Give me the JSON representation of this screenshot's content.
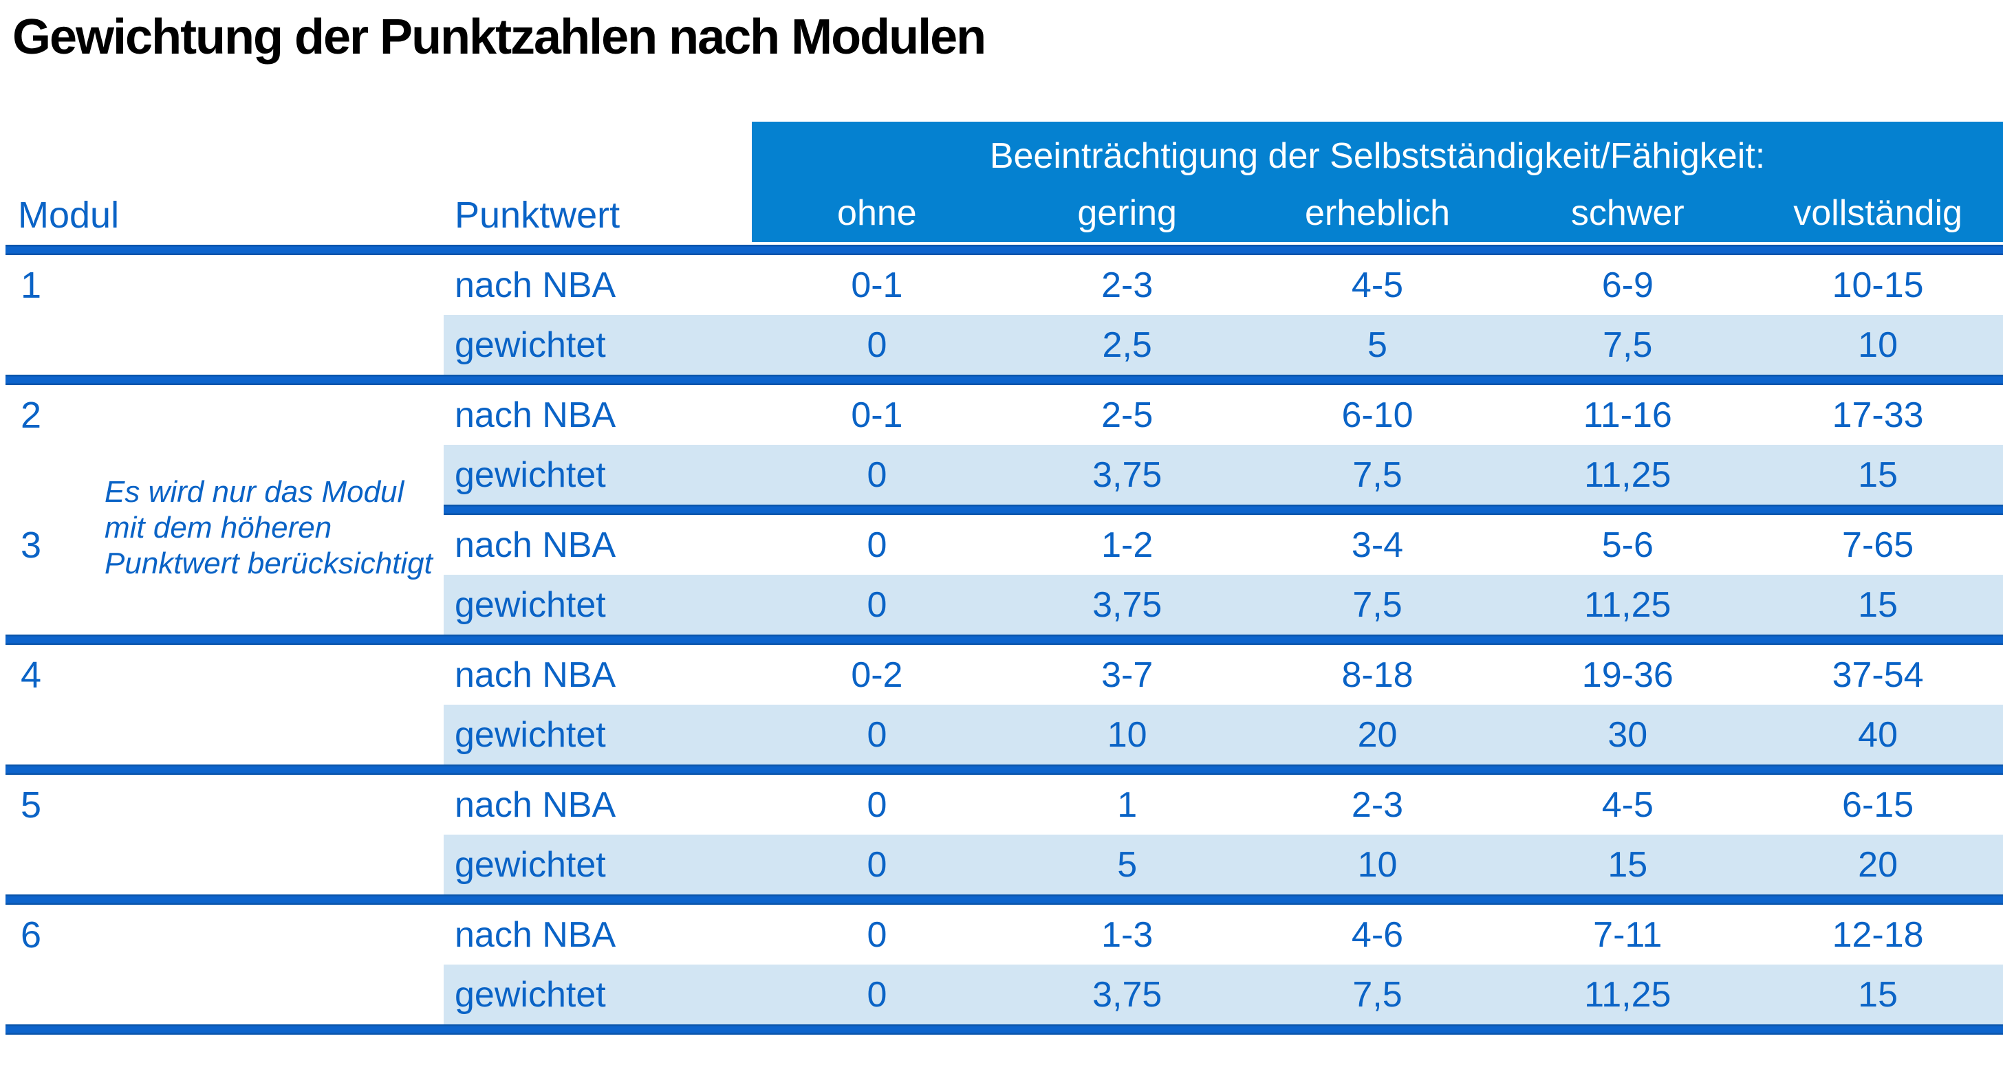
{
  "title": "Gewichtung der Punktzahlen nach Modulen",
  "colors": {
    "header_blue": "#0581d0",
    "divider_blue": "#0d64cc",
    "text_blue": "#0a63c6",
    "row_light_blue": "#d2e5f3"
  },
  "table": {
    "modul_header": "Modul",
    "punktwert_header": "Punktwert",
    "group_header": "Beeinträchtigung der Selbstständigkeit/Fähigkeit:",
    "columns": [
      "ohne",
      "gering",
      "erheblich",
      "schwer",
      "vollständig"
    ],
    "row_labels": {
      "nba": "nach NBA",
      "gewichtet": "gewichtet"
    },
    "note_lines": [
      "Es wird nur das Modul",
      "mit dem höheren",
      "Punktwert berücksichtigt"
    ],
    "modules": [
      {
        "id": "1",
        "nba": [
          "0-1",
          "2-3",
          "4-5",
          "6-9",
          "10-15"
        ],
        "gewichtet": [
          "0",
          "2,5",
          "5",
          "7,5",
          "10"
        ]
      },
      {
        "id": "2",
        "nba": [
          "0-1",
          "2-5",
          "6-10",
          "11-16",
          "17-33"
        ],
        "gewichtet": [
          "0",
          "3,75",
          "7,5",
          "11,25",
          "15"
        ]
      },
      {
        "id": "3",
        "nba": [
          "0",
          "1-2",
          "3-4",
          "5-6",
          "7-65"
        ],
        "gewichtet": [
          "0",
          "3,75",
          "7,5",
          "11,25",
          "15"
        ]
      },
      {
        "id": "4",
        "nba": [
          "0-2",
          "3-7",
          "8-18",
          "19-36",
          "37-54"
        ],
        "gewichtet": [
          "0",
          "10",
          "20",
          "30",
          "40"
        ]
      },
      {
        "id": "5",
        "nba": [
          "0",
          "1",
          "2-3",
          "4-5",
          "6-15"
        ],
        "gewichtet": [
          "0",
          "5",
          "10",
          "15",
          "20"
        ]
      },
      {
        "id": "6",
        "nba": [
          "0",
          "1-3",
          "4-6",
          "7-11",
          "12-18"
        ],
        "gewichtet": [
          "0",
          "3,75",
          "7,5",
          "11,25",
          "15"
        ]
      }
    ]
  }
}
